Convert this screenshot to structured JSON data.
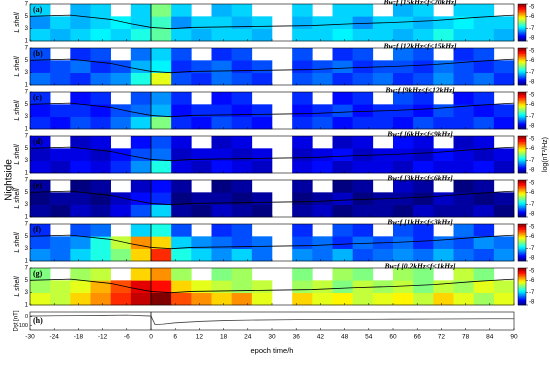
{
  "side_label": "Nightside",
  "chart_data": [
    {
      "type": "heatmap",
      "label": "(a)",
      "title": "Bw:f [15kHz<f<20kHz]",
      "ylabel": "L shell",
      "ylim": [
        1,
        7
      ],
      "yticks": [
        1,
        3,
        5,
        7
      ],
      "x_bins": [
        -30,
        -25,
        -20,
        -15,
        -10,
        -5,
        0,
        5,
        10,
        15,
        20,
        25,
        30,
        35,
        40,
        45,
        50,
        55,
        60,
        65,
        70,
        75,
        80,
        85,
        90
      ],
      "y_bins": [
        1,
        3,
        5,
        7
      ],
      "values": [
        [
          -7,
          -7.1,
          -7,
          -6.9,
          -7,
          -6.8,
          -6.6,
          -7,
          -7.1,
          -7,
          -7,
          -7.1,
          null,
          -7,
          -7,
          -6.9,
          -7,
          -7,
          -7.1,
          -7,
          -6.8,
          -7,
          -7,
          -7.1
        ],
        [
          -7.2,
          -7,
          -7.1,
          -7,
          -6.9,
          -7,
          -6.7,
          -7.2,
          -7,
          -7,
          -7.1,
          -7,
          null,
          -7.1,
          -7,
          -7,
          -7.2,
          -7,
          -7,
          -7.1,
          -7,
          -6.9,
          -7,
          -7
        ],
        [
          -7,
          null,
          -7.1,
          -7,
          null,
          -7,
          -6.5,
          -7,
          null,
          -7.1,
          -7,
          null,
          null,
          -7,
          null,
          -7,
          -7,
          null,
          -7.1,
          -7,
          null,
          -7,
          -7,
          null
        ]
      ],
      "line": {
        "x": [
          -30,
          -20,
          -10,
          -5,
          0,
          5,
          10,
          20,
          30,
          40,
          50,
          60,
          70,
          80,
          90
        ],
        "values": [
          5,
          5.2,
          4.5,
          3.8,
          3.2,
          3,
          3.2,
          3.3,
          3.4,
          3.5,
          3.8,
          4,
          4.3,
          4.8,
          5.2
        ]
      },
      "colorbar_lim": [
        -8,
        -5
      ],
      "colorbar_ticks": [
        -5,
        -6,
        -7,
        -8
      ]
    },
    {
      "type": "heatmap",
      "label": "(b)",
      "title": "Bw:f [12kHz<f<15kHz]",
      "ylabel": "L shell",
      "ylim": [
        1,
        7
      ],
      "yticks": [
        1,
        3,
        5,
        7
      ],
      "x_bins": [
        -30,
        -25,
        -20,
        -15,
        -10,
        -5,
        0,
        5,
        10,
        15,
        20,
        25,
        30,
        35,
        40,
        45,
        50,
        55,
        60,
        65,
        70,
        75,
        80,
        85,
        90
      ],
      "y_bins": [
        1,
        3,
        5,
        7
      ],
      "values": [
        [
          -7.3,
          -7.4,
          -7.5,
          -7.3,
          -7.2,
          -6.8,
          -6.2,
          -7.4,
          -7.5,
          -7.3,
          -7.4,
          -7.5,
          null,
          -7.4,
          -7.3,
          -7.5,
          -7.4,
          -7.3,
          -7.5,
          -7.4,
          -7.2,
          -7.4,
          -7.3,
          -7.5
        ],
        [
          -7.5,
          -7.4,
          -7.3,
          -7.5,
          -7.4,
          -7.1,
          -6.9,
          -7.5,
          -7.4,
          -7.3,
          -7.5,
          -7.4,
          null,
          -7.5,
          -7.4,
          -7.3,
          -7.5,
          -7.4,
          -7.4,
          -7.5,
          -7.3,
          -7.4,
          -7.5,
          -7.4
        ],
        [
          -7.4,
          null,
          -7.5,
          -7.4,
          null,
          -7.3,
          -7,
          -7.4,
          null,
          -7.5,
          -7.4,
          null,
          null,
          -7.4,
          null,
          -7.5,
          -7.4,
          null,
          -7.3,
          -7.4,
          null,
          -7.5,
          -7.4,
          null
        ]
      ],
      "line": {
        "x": [
          -30,
          -20,
          -10,
          -5,
          0,
          5,
          10,
          20,
          30,
          40,
          50,
          60,
          70,
          80,
          90
        ],
        "values": [
          5,
          5.2,
          4.5,
          3.8,
          3.2,
          3,
          3.2,
          3.3,
          3.4,
          3.5,
          3.8,
          4,
          4.3,
          4.8,
          5.2
        ]
      },
      "colorbar_lim": [
        -8,
        -5
      ],
      "colorbar_ticks": [
        -5,
        -6,
        -7,
        -8
      ]
    },
    {
      "type": "heatmap",
      "label": "(c)",
      "title": "Bw:f [9kHz<f<12kHz]",
      "ylabel": "L shell",
      "ylim": [
        1,
        7
      ],
      "yticks": [
        1,
        3,
        5,
        7
      ],
      "x_bins": [
        -30,
        -25,
        -20,
        -15,
        -10,
        -5,
        0,
        5,
        10,
        15,
        20,
        25,
        30,
        35,
        40,
        45,
        50,
        55,
        60,
        65,
        70,
        75,
        80,
        85,
        90
      ],
      "y_bins": [
        1,
        3,
        5,
        7
      ],
      "values": [
        [
          -7.5,
          -7.6,
          -7.4,
          -7.5,
          -7.3,
          -7,
          -6.5,
          -7.5,
          -7.6,
          -7.4,
          -7.5,
          -7.6,
          null,
          -7.5,
          -7.4,
          -7.6,
          -7.5,
          -7.5,
          -7.6,
          -7.4,
          -7.5,
          -7.5,
          -7.4,
          -7.6
        ],
        [
          -7.6,
          -7.5,
          -7.5,
          -7.6,
          -7.4,
          -7.3,
          -7.1,
          -7.6,
          -7.5,
          -7.5,
          -7.6,
          -7.5,
          null,
          -7.6,
          -7.5,
          -7.4,
          -7.6,
          -7.5,
          -7.5,
          -7.6,
          -7.4,
          -7.5,
          -7.6,
          -7.5
        ],
        [
          -7.5,
          null,
          -7.6,
          -7.5,
          null,
          -7.4,
          -7.2,
          -7.5,
          null,
          -7.6,
          -7.5,
          null,
          null,
          -7.5,
          null,
          -7.6,
          -7.5,
          null,
          -7.4,
          -7.5,
          null,
          -7.6,
          -7.5,
          null
        ]
      ],
      "line": {
        "x": [
          -30,
          -20,
          -10,
          -5,
          0,
          5,
          10,
          20,
          30,
          40,
          50,
          60,
          70,
          80,
          90
        ],
        "values": [
          5,
          5.2,
          4.5,
          3.8,
          3.2,
          3,
          3.2,
          3.3,
          3.4,
          3.5,
          3.8,
          4,
          4.3,
          4.8,
          5.2
        ]
      },
      "colorbar_lim": [
        -8,
        -5
      ],
      "colorbar_ticks": [
        -5,
        -6,
        -7,
        -8
      ]
    },
    {
      "type": "heatmap",
      "label": "(d)",
      "title": "Bw:f [6kHz<f<9kHz]",
      "ylabel": "L shell",
      "ylim": [
        1,
        7
      ],
      "yticks": [
        1,
        3,
        5,
        7
      ],
      "x_bins": [
        -30,
        -25,
        -20,
        -15,
        -10,
        -5,
        0,
        5,
        10,
        15,
        20,
        25,
        30,
        35,
        40,
        45,
        50,
        55,
        60,
        65,
        70,
        75,
        80,
        85,
        90
      ],
      "y_bins": [
        1,
        3,
        5,
        7
      ],
      "values": [
        [
          -7.7,
          -7.8,
          -7.6,
          -7.7,
          -7.5,
          -7.2,
          -6.8,
          -7.7,
          -7.8,
          -7.6,
          -7.7,
          -7.8,
          null,
          -7.7,
          -7.6,
          -7.8,
          -7.7,
          -7.7,
          -7.8,
          -7.6,
          -7.7,
          -7.7,
          -7.6,
          -7.8
        ],
        [
          -7.8,
          -7.7,
          -7.7,
          -7.8,
          -7.6,
          -7.4,
          -7.3,
          -7.8,
          -7.7,
          -7.7,
          -7.8,
          -7.7,
          null,
          -7.8,
          -7.7,
          -7.6,
          -7.8,
          -7.7,
          -7.7,
          -7.8,
          -7.6,
          -7.7,
          -7.8,
          -7.7
        ],
        [
          -7.7,
          null,
          -7.8,
          -7.7,
          null,
          -7.6,
          -7.4,
          -7.7,
          null,
          -7.8,
          -7.7,
          null,
          null,
          -7.7,
          null,
          -7.8,
          -7.7,
          null,
          -7.6,
          -7.7,
          null,
          -7.8,
          -7.7,
          null
        ]
      ],
      "line": {
        "x": [
          -30,
          -20,
          -10,
          -5,
          0,
          5,
          10,
          20,
          30,
          40,
          50,
          60,
          70,
          80,
          90
        ],
        "values": [
          5,
          5.2,
          4.5,
          3.8,
          3.2,
          3,
          3.2,
          3.3,
          3.4,
          3.5,
          3.8,
          4,
          4.3,
          4.8,
          5.2
        ]
      },
      "colorbar_lim": [
        -8,
        -5
      ],
      "colorbar_ticks": [
        -5,
        -6,
        -7,
        -8
      ],
      "colorbar_label": "log(nT²/Hz)"
    },
    {
      "type": "heatmap",
      "label": "(e)",
      "title": "Bw:f [3kHz<f<6kHz]",
      "ylabel": "L shell",
      "ylim": [
        1,
        7
      ],
      "yticks": [
        1,
        3,
        5,
        7
      ],
      "x_bins": [
        -30,
        -25,
        -20,
        -15,
        -10,
        -5,
        0,
        5,
        10,
        15,
        20,
        25,
        30,
        35,
        40,
        45,
        50,
        55,
        60,
        65,
        70,
        75,
        80,
        85,
        90
      ],
      "y_bins": [
        1,
        3,
        5,
        7
      ],
      "values": [
        [
          -7.9,
          -8,
          -7.8,
          -7.9,
          -7.7,
          -7.4,
          -7,
          -7.9,
          -8,
          -7.8,
          -7.9,
          -8,
          null,
          -7.9,
          -7.8,
          -8,
          -7.9,
          -7.9,
          -8,
          -7.8,
          -7.9,
          -7.9,
          -7.8,
          -8
        ],
        [
          -8,
          -7.9,
          -7.9,
          -8,
          -7.8,
          -7.6,
          -7.5,
          -8,
          -7.9,
          -7.9,
          -8,
          -7.9,
          null,
          -8,
          -7.9,
          -7.8,
          -8,
          -7.9,
          -7.9,
          -8,
          -7.8,
          -7.9,
          -8,
          -7.9
        ],
        [
          -7.9,
          null,
          -8,
          -7.9,
          null,
          -7.8,
          -7.6,
          -7.9,
          null,
          -8,
          -7.9,
          null,
          null,
          -7.9,
          null,
          -8,
          -7.9,
          null,
          -7.8,
          -7.9,
          null,
          -8,
          -7.9,
          null
        ]
      ],
      "line": {
        "x": [
          -30,
          -20,
          -10,
          -5,
          0,
          5,
          10,
          20,
          30,
          40,
          50,
          60,
          70,
          80,
          90
        ],
        "values": [
          5,
          5.2,
          4.5,
          3.8,
          3.2,
          3,
          3.2,
          3.3,
          3.4,
          3.5,
          3.8,
          4,
          4.3,
          4.8,
          5.2
        ]
      },
      "colorbar_lim": [
        -8,
        -5
      ],
      "colorbar_ticks": [
        -5,
        -6,
        -7,
        -8
      ]
    },
    {
      "type": "heatmap",
      "label": "(f)",
      "title": "Bw:f [1kHz<f<3kHz]",
      "ylabel": "L shell",
      "ylim": [
        1,
        7
      ],
      "yticks": [
        1,
        3,
        5,
        7
      ],
      "x_bins": [
        -30,
        -25,
        -20,
        -15,
        -10,
        -5,
        0,
        5,
        10,
        15,
        20,
        25,
        30,
        35,
        40,
        45,
        50,
        55,
        60,
        65,
        70,
        75,
        80,
        85,
        90
      ],
      "y_bins": [
        1,
        3,
        5,
        7
      ],
      "values": [
        [
          -7.2,
          -7.3,
          -7,
          -6.8,
          -6.5,
          -6,
          -5.5,
          -6.8,
          -7,
          -7.2,
          -7,
          -7.3,
          null,
          -7.2,
          -7.3,
          -7.1,
          -7.4,
          -7.3,
          -7.2,
          -7.3,
          -7.1,
          -7.3,
          -7.4,
          -7.2
        ],
        [
          -7.4,
          -7.3,
          -7.2,
          -6.8,
          -6.3,
          -5.8,
          -6,
          -7,
          -7.2,
          -7.3,
          -7.4,
          -7.3,
          null,
          -7.4,
          -7.3,
          -7.5,
          -7.3,
          -7.4,
          -7.3,
          -7.5,
          -7.3,
          -7.4,
          -7.2,
          -7.3
        ],
        [
          -7.5,
          null,
          -7.4,
          -7.3,
          null,
          -7,
          -6.8,
          -7.4,
          null,
          -7.5,
          -7.4,
          null,
          null,
          -7.5,
          null,
          -7.4,
          -7.5,
          null,
          -7.4,
          -7.5,
          null,
          -7.3,
          -7.5,
          null
        ]
      ],
      "line": {
        "x": [
          -30,
          -20,
          -10,
          -5,
          0,
          5,
          10,
          20,
          30,
          40,
          50,
          60,
          70,
          80,
          90
        ],
        "values": [
          5,
          5.2,
          4.5,
          3.8,
          3.2,
          3,
          3.2,
          3.3,
          3.4,
          3.5,
          3.8,
          4,
          4.3,
          4.8,
          5.2
        ]
      },
      "colorbar_lim": [
        -8,
        -5
      ],
      "colorbar_ticks": [
        -5,
        -6,
        -7,
        -8
      ]
    },
    {
      "type": "heatmap",
      "label": "(g)",
      "title": "Bw:f [0.2kHz<f<1kHz]",
      "ylabel": "L shell",
      "ylim": [
        1,
        7
      ],
      "yticks": [
        1,
        3,
        5,
        7
      ],
      "x_bins": [
        -30,
        -25,
        -20,
        -15,
        -10,
        -5,
        0,
        5,
        10,
        15,
        20,
        25,
        30,
        35,
        40,
        45,
        50,
        55,
        60,
        65,
        70,
        75,
        80,
        85,
        90
      ],
      "y_bins": [
        1,
        3,
        5,
        7
      ],
      "values": [
        [
          -6.2,
          -6.3,
          -6,
          -5.8,
          -5.5,
          -5.2,
          -5,
          -5.6,
          -5.8,
          -6,
          -5.8,
          -6.2,
          null,
          -6,
          -6.2,
          -6.1,
          -6.3,
          -6.2,
          -6.1,
          -6.3,
          -6,
          -6.2,
          -6.4,
          -6.2
        ],
        [
          -6.4,
          -6.3,
          -6.2,
          -5.9,
          -5.6,
          -5.3,
          -5.4,
          -6,
          -6.2,
          -6.3,
          -6.4,
          -6.3,
          null,
          -6.4,
          -6.3,
          -6.5,
          -6.3,
          -6.4,
          -6.3,
          -6.5,
          -6.3,
          -6.4,
          -6.2,
          -6.3
        ],
        [
          -6.5,
          null,
          -6.4,
          -6.3,
          null,
          -6,
          -5.8,
          -6.4,
          null,
          -6.5,
          -6.4,
          null,
          null,
          -6.5,
          null,
          -6.4,
          -6.5,
          null,
          -6.4,
          -6.5,
          null,
          -6.3,
          -6.5,
          null
        ]
      ],
      "line": {
        "x": [
          -30,
          -20,
          -10,
          -5,
          0,
          5,
          10,
          20,
          30,
          40,
          50,
          60,
          70,
          80,
          90
        ],
        "values": [
          5,
          5.2,
          4.5,
          3.8,
          3.2,
          3,
          3.2,
          3.3,
          3.4,
          3.5,
          3.8,
          4,
          4.3,
          4.8,
          5.2
        ]
      },
      "colorbar_lim": [
        -8,
        -5
      ],
      "colorbar_ticks": [
        -5,
        -6,
        -7,
        -8
      ]
    },
    {
      "type": "line",
      "label": "(h)",
      "ylabel": "Dst [nT]",
      "xlabel": "epoch time/h",
      "xlim": [
        -30,
        90
      ],
      "xticks": [
        -30,
        -24,
        -18,
        -12,
        -6,
        0,
        6,
        12,
        18,
        24,
        30,
        36,
        42,
        48,
        54,
        60,
        66,
        72,
        78,
        84,
        90
      ],
      "ylim": [
        -150,
        50
      ],
      "yticks": [
        -100,
        0
      ],
      "x": [
        -30,
        -24,
        -18,
        -12,
        -6,
        0,
        1,
        3,
        6,
        12,
        18,
        24,
        36,
        48,
        60,
        72,
        84,
        90
      ],
      "values": [
        5,
        8,
        10,
        12,
        15,
        5,
        -90,
        -85,
        -70,
        -55,
        -45,
        -40,
        -35,
        -32,
        -30,
        -28,
        -25,
        -25
      ]
    }
  ]
}
